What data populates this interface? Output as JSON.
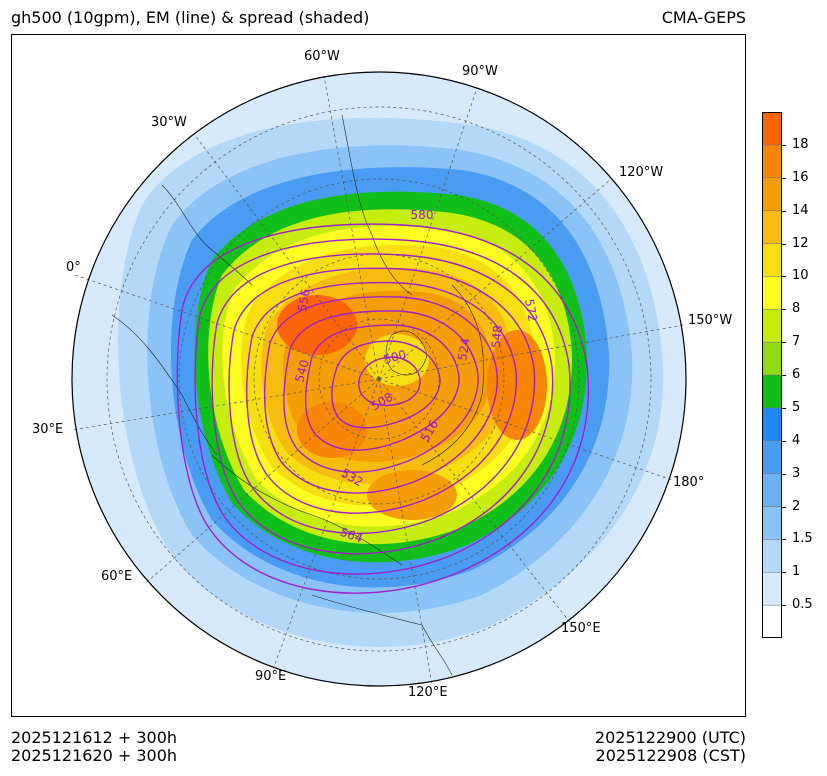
{
  "header": {
    "title_left": "gh500 (10gpm), EM (line) & spread (shaded)",
    "title_right": "CMA-GEPS"
  },
  "footer": {
    "init_utc": "2025121612 + 300h",
    "init_cst": "2025121620 + 300h",
    "valid_utc": "2025122900 (UTC)",
    "valid_cst": "2025122908 (CST)"
  },
  "map": {
    "projection": "north polar stereographic",
    "longitude_labels": [
      "60°W",
      "90°W",
      "30°W",
      "120°W",
      "0°",
      "150°W",
      "30°E",
      "180°",
      "60°E",
      "150°E",
      "90°E",
      "120°E"
    ],
    "contour_labels": [
      "580",
      "556",
      "572",
      "548",
      "524",
      "500",
      "540",
      "508",
      "516",
      "532",
      "564"
    ]
  },
  "colorbar": {
    "colors": [
      "#ffffff",
      "#d6eafc",
      "#b4d8f8",
      "#8cc3f6",
      "#6cb0f4",
      "#4a9cf2",
      "#1e86f5",
      "#12bf1a",
      "#8fdc14",
      "#c6ec10",
      "#fdfd22",
      "#f7de12",
      "#f7bc10",
      "#f59c09",
      "#f78506",
      "#fb6409"
    ],
    "tick_labels": [
      "0.5",
      "1",
      "1.5",
      "2",
      "3",
      "4",
      "5",
      "6",
      "7",
      "8",
      "10",
      "12",
      "14",
      "16",
      "18"
    ]
  },
  "colors": {
    "contour": "#a020c8",
    "label_text": "#9a18c8"
  }
}
